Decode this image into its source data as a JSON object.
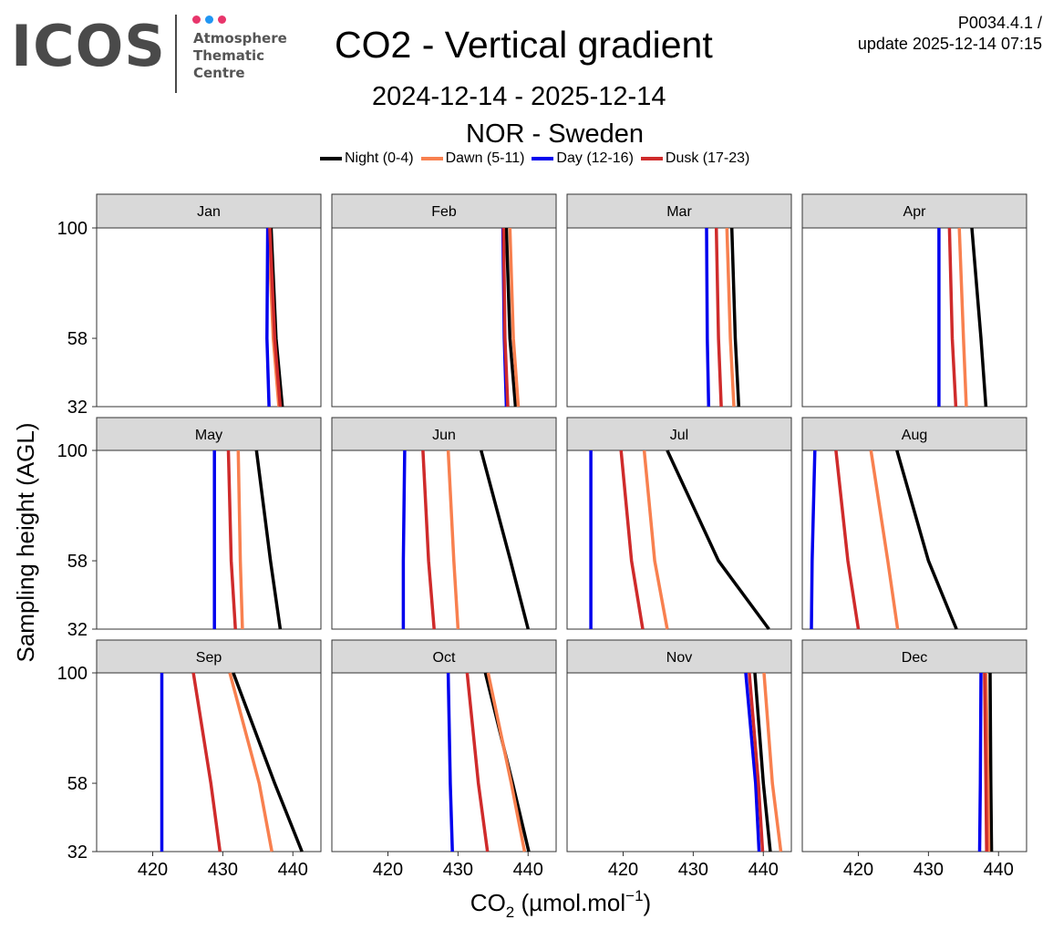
{
  "header": {
    "logo_text": "ICOS",
    "logo_line1": "Atmosphere",
    "logo_line2": "Thematic",
    "logo_line3": "Centre",
    "logo_dot_colors": [
      "#e8356b",
      "#2196f3",
      "#e8356b"
    ],
    "title": "CO2 - Vertical gradient",
    "subtitle_period": "2024-12-14 - 2025-12-14",
    "subtitle_station": "NOR - Sweden",
    "version_line1": "P0034.4.1 /",
    "version_line2": "update  2025-12-14 07:15"
  },
  "chart_data": {
    "type": "line",
    "layout": "faceted",
    "ylabel": "Sampling height (AGL)",
    "xlabel_main": "CO",
    "xlabel_sub": "2",
    "xlabel_rest": " (µmol.mol",
    "xlabel_sup": "−1",
    "xlabel_close": ")",
    "heights": [
      32,
      58,
      100
    ],
    "ylim": [
      32,
      100
    ],
    "xlim": [
      412,
      444
    ],
    "xticks": [
      420,
      430,
      440
    ],
    "legend": [
      {
        "name": "Night (0-4)",
        "color": "#000000"
      },
      {
        "name": "Dawn (5-11)",
        "color": "#f8804f"
      },
      {
        "name": "Day (12-16)",
        "color": "#0000ee"
      },
      {
        "name": "Dusk (17-23)",
        "color": "#cf2b2b"
      }
    ],
    "panels": [
      {
        "month": "Jan",
        "series": {
          "Night (0-4)": [
            438.5,
            437.6,
            436.9
          ],
          "Dawn (5-11)": [
            438.0,
            437.2,
            436.5
          ],
          "Day (12-16)": [
            436.6,
            436.3,
            436.4
          ],
          "Dusk (17-23)": [
            438.2,
            437.4,
            436.7
          ]
        }
      },
      {
        "month": "Feb",
        "series": {
          "Night (0-4)": [
            438.2,
            437.4,
            436.9
          ],
          "Dawn (5-11)": [
            438.6,
            437.9,
            437.4
          ],
          "Day (12-16)": [
            436.9,
            436.6,
            436.4
          ],
          "Dusk (17-23)": [
            437.1,
            436.7,
            436.5
          ]
        }
      },
      {
        "month": "Mar",
        "series": {
          "Night (0-4)": [
            436.5,
            436.0,
            435.5
          ],
          "Dawn (5-11)": [
            435.8,
            435.3,
            434.8
          ],
          "Day (12-16)": [
            432.2,
            432.0,
            431.9
          ],
          "Dusk (17-23)": [
            434.0,
            433.6,
            433.3
          ]
        }
      },
      {
        "month": "Apr",
        "series": {
          "Night (0-4)": [
            438.2,
            437.5,
            436.2
          ],
          "Dawn (5-11)": [
            435.4,
            435.0,
            434.4
          ],
          "Day (12-16)": [
            431.5,
            431.5,
            431.5
          ],
          "Dusk (17-23)": [
            433.9,
            433.4,
            433.0
          ]
        }
      },
      {
        "month": "May",
        "series": {
          "Night (0-4)": [
            438.2,
            436.8,
            434.8
          ],
          "Dawn (5-11)": [
            432.8,
            432.5,
            432.2
          ],
          "Day (12-16)": [
            428.8,
            428.8,
            428.8
          ],
          "Dusk (17-23)": [
            431.8,
            431.2,
            430.8
          ]
        }
      },
      {
        "month": "Jun",
        "series": {
          "Night (0-4)": [
            440.0,
            437.5,
            433.3
          ],
          "Dawn (5-11)": [
            430.0,
            429.4,
            428.6
          ],
          "Day (12-16)": [
            422.2,
            422.2,
            422.4
          ],
          "Dusk (17-23)": [
            426.6,
            425.8,
            425.0
          ]
        }
      },
      {
        "month": "Jul",
        "series": {
          "Night (0-4)": [
            440.8,
            433.6,
            426.3
          ],
          "Dawn (5-11)": [
            426.3,
            424.5,
            423.0
          ],
          "Day (12-16)": [
            415.4,
            415.4,
            415.4
          ],
          "Dusk (17-23)": [
            422.8,
            421.2,
            419.7
          ]
        }
      },
      {
        "month": "Aug",
        "series": {
          "Night (0-4)": [
            434.0,
            430.0,
            425.5
          ],
          "Dawn (5-11)": [
            425.6,
            424.2,
            421.8
          ],
          "Day (12-16)": [
            413.3,
            413.4,
            413.8
          ],
          "Dusk (17-23)": [
            420.0,
            418.5,
            416.8
          ]
        }
      },
      {
        "month": "Sep",
        "series": {
          "Night (0-4)": [
            441.3,
            437.4,
            431.5
          ],
          "Dawn (5-11)": [
            437.0,
            435.2,
            431.0
          ],
          "Day (12-16)": [
            421.3,
            421.3,
            421.3
          ],
          "Dusk (17-23)": [
            429.6,
            428.3,
            425.8
          ]
        }
      },
      {
        "month": "Oct",
        "series": {
          "Night (0-4)": [
            440.1,
            437.8,
            433.9
          ],
          "Dawn (5-11)": [
            439.5,
            437.6,
            434.3
          ],
          "Day (12-16)": [
            429.2,
            428.9,
            428.6
          ],
          "Dusk (17-23)": [
            434.2,
            432.9,
            431.3
          ]
        }
      },
      {
        "month": "Nov",
        "series": {
          "Night (0-4)": [
            441.0,
            440.0,
            438.8
          ],
          "Dawn (5-11)": [
            442.5,
            441.3,
            440.1
          ],
          "Day (12-16)": [
            439.4,
            438.9,
            437.5
          ],
          "Dusk (17-23)": [
            439.9,
            439.3,
            438.0
          ]
        }
      },
      {
        "month": "Dec",
        "series": {
          "Night (0-4)": [
            439.0,
            438.9,
            438.8
          ],
          "Dawn (5-11)": [
            438.6,
            438.5,
            438.2
          ],
          "Day (12-16)": [
            437.3,
            437.4,
            437.5
          ],
          "Dusk (17-23)": [
            438.3,
            438.2,
            438.0
          ]
        }
      }
    ]
  }
}
